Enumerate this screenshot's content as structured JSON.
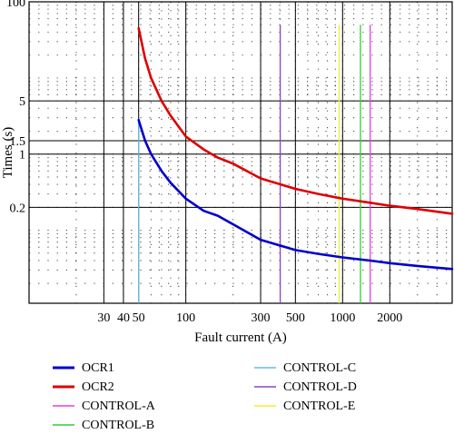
{
  "chart_data": {
    "type": "line",
    "xlabel": "Fault current (A)",
    "ylabel": "Times (s)",
    "x_scale": "log",
    "y_scale": "log",
    "xlim": [
      10,
      5000
    ],
    "ylim": [
      0.011,
      100
    ],
    "x_ticks": [
      {
        "value": 30,
        "label": "30"
      },
      {
        "value": 40,
        "label": "40"
      },
      {
        "value": 50,
        "label": "50"
      },
      {
        "value": 100,
        "label": "100"
      },
      {
        "value": 300,
        "label": "300"
      },
      {
        "value": 500,
        "label": "500"
      },
      {
        "value": 1000,
        "label": "1000"
      },
      {
        "value": 2000,
        "label": "2000"
      }
    ],
    "y_ticks": [
      {
        "value": 100,
        "label": "100"
      },
      {
        "value": 5,
        "label": "5"
      },
      {
        "value": 1.5,
        "label": "1.5"
      },
      {
        "value": 1,
        "label": "1"
      },
      {
        "value": 0.2,
        "label": "0.2"
      }
    ],
    "grid": true,
    "legend_position": "bottom",
    "series": [
      {
        "name": "OCR1",
        "color": "#0000cc",
        "x": [
          50,
          55,
          60,
          70,
          80,
          100,
          130,
          160,
          200,
          300,
          500,
          700,
          1000,
          1500,
          2000,
          3000,
          5000
        ],
        "y": [
          2.8,
          1.5,
          1.0,
          0.6,
          0.42,
          0.26,
          0.18,
          0.155,
          0.12,
          0.075,
          0.055,
          0.049,
          0.044,
          0.04,
          0.037,
          0.034,
          0.031
        ]
      },
      {
        "name": "OCR2",
        "color": "#dd0000",
        "x": [
          50,
          55,
          60,
          70,
          80,
          100,
          130,
          160,
          200,
          300,
          500,
          700,
          1000,
          1500,
          2000,
          3000,
          5000
        ],
        "y": [
          45,
          18,
          10,
          5,
          3.2,
          1.7,
          1.15,
          0.9,
          0.75,
          0.48,
          0.35,
          0.3,
          0.26,
          0.23,
          0.21,
          0.19,
          0.165
        ]
      },
      {
        "name": "CONTROL-A",
        "color": "#e040e0",
        "vertical_line": 1500,
        "y_range": [
          0.011,
          50
        ]
      },
      {
        "name": "CONTROL-B",
        "color": "#33cc33",
        "vertical_line": 1300,
        "y_range": [
          0.011,
          50
        ]
      },
      {
        "name": "CONTROL-C",
        "color": "#66bbdd",
        "vertical_line": 50,
        "y_range": [
          0.011,
          2.8
        ]
      },
      {
        "name": "CONTROL-D",
        "color": "#8844cc",
        "vertical_line": 400,
        "y_range": [
          0.011,
          50
        ]
      },
      {
        "name": "CONTROL-E",
        "color": "#eeee33",
        "vertical_line": 950,
        "y_range": [
          0.011,
          50
        ]
      }
    ]
  }
}
